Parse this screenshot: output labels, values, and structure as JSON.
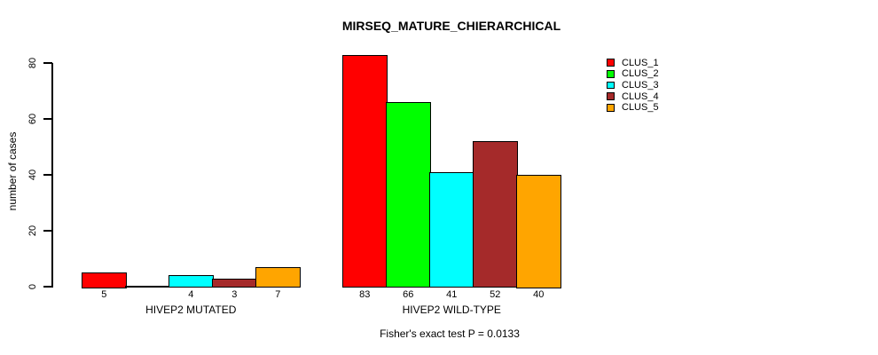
{
  "chart_data": {
    "type": "bar",
    "title": "MIRSEQ_MATURE_CHIERARCHICAL",
    "xlabel": "",
    "ylabel": "number of cases",
    "ylim": [
      0,
      80
    ],
    "y_ticks": [
      0,
      20,
      40,
      60,
      80
    ],
    "categories": [
      "HIVEP2 MUTATED",
      "HIVEP2 WILD-TYPE"
    ],
    "series": [
      {
        "name": "CLUS_1",
        "color": "#FF0000",
        "values": [
          5,
          83
        ]
      },
      {
        "name": "CLUS_2",
        "color": "#00FF00",
        "values": [
          0,
          66
        ]
      },
      {
        "name": "CLUS_3",
        "color": "#00FFFF",
        "values": [
          4,
          41
        ]
      },
      {
        "name": "CLUS_4",
        "color": "#A52A2A",
        "values": [
          3,
          52
        ]
      },
      {
        "name": "CLUS_5",
        "color": "#FFA500",
        "values": [
          7,
          40
        ]
      }
    ],
    "bar_value_labels": {
      "HIVEP2 MUTATED": [
        "5",
        null,
        "4",
        "3",
        "7"
      ],
      "HIVEP2 WILD-TYPE": [
        "83",
        "66",
        "41",
        "52",
        "40"
      ]
    },
    "annotation": "Fisher's exact test P = 0.0133",
    "legend_position": "top-right",
    "legend_entries": [
      "CLUS_1",
      "CLUS_2",
      "CLUS_3",
      "CLUS_4",
      "CLUS_5"
    ],
    "grid": false,
    "background_color": "#FFFFFF",
    "text_color": "#000000"
  }
}
